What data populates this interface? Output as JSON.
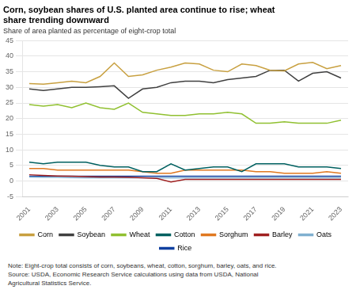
{
  "chart_data": {
    "type": "line",
    "title": [
      "Corn, soybean shares of U.S. planted area continue to rise; wheat",
      "share trending downward"
    ],
    "subtitle": "Share of area planted as percentage of eight-crop total",
    "notes": [
      "Note: Eight-crop total consists of corn, soybeans, wheat, cotton, sorghum, barley, oats, and rice.",
      "Source: USDA, Economic Research Service calculations using data from USDA, National",
      "Agricultural Statistics Service."
    ],
    "x": [
      2001,
      2002,
      2003,
      2004,
      2005,
      2006,
      2007,
      2008,
      2009,
      2010,
      2011,
      2012,
      2013,
      2014,
      2015,
      2016,
      2017,
      2018,
      2019,
      2020,
      2021,
      2022,
      2023
    ],
    "series": [
      {
        "name": "Corn",
        "color": "#C8A040",
        "values": [
          31.2,
          31.0,
          31.5,
          32.0,
          31.5,
          33.5,
          37.8,
          33.5,
          34.0,
          35.5,
          36.5,
          37.8,
          37.5,
          35.5,
          35.0,
          37.5,
          37.0,
          35.5,
          35.3,
          37.5,
          38.0,
          36.0,
          37.0
        ]
      },
      {
        "name": "Soybean",
        "color": "#404040",
        "values": [
          29.5,
          29.0,
          29.5,
          30.0,
          30.0,
          30.2,
          30.5,
          26.5,
          29.5,
          30.0,
          31.5,
          32.0,
          32.0,
          31.5,
          32.5,
          33.0,
          33.5,
          35.5,
          35.5,
          32.0,
          34.5,
          35.0,
          33.0
        ]
      },
      {
        "name": "Wheat",
        "color": "#90C030",
        "values": [
          24.5,
          24.0,
          24.5,
          23.5,
          25.0,
          23.5,
          23.0,
          25.0,
          22.0,
          21.5,
          21.0,
          21.0,
          21.5,
          21.5,
          22.0,
          21.5,
          18.5,
          18.5,
          19.0,
          18.5,
          18.5,
          18.5,
          19.5
        ]
      },
      {
        "name": "Cotton",
        "color": "#006060",
        "values": [
          6.0,
          5.5,
          6.0,
          6.0,
          6.0,
          5.0,
          4.5,
          4.5,
          3.0,
          3.0,
          5.5,
          3.5,
          4.0,
          4.5,
          4.5,
          3.0,
          5.5,
          5.5,
          5.5,
          4.5,
          4.5,
          4.5,
          4.0
        ]
      },
      {
        "name": "Sorghum",
        "color": "#E07820",
        "values": [
          4.0,
          4.0,
          3.5,
          3.5,
          3.5,
          3.5,
          3.5,
          3.5,
          3.0,
          2.5,
          2.5,
          3.5,
          3.5,
          3.5,
          3.5,
          3.5,
          3.0,
          3.0,
          2.5,
          2.5,
          2.5,
          3.0,
          2.5
        ]
      },
      {
        "name": "Barley",
        "color": "#A02020",
        "values": [
          2.0,
          1.8,
          1.6,
          1.5,
          1.4,
          1.3,
          1.3,
          1.2,
          1.0,
          0.8,
          -0.3,
          0.5,
          0.5,
          0.5,
          0.5,
          0.5,
          0.5,
          0.5,
          0.5,
          0.5,
          0.5,
          0.5,
          0.5
        ]
      },
      {
        "name": "Oats",
        "color": "#80B0D0",
        "values": [
          1.3,
          1.2,
          1.2,
          1.1,
          1.0,
          1.0,
          1.0,
          1.0,
          1.0,
          1.0,
          1.0,
          1.0,
          1.0,
          1.0,
          1.0,
          1.0,
          1.0,
          1.0,
          1.0,
          1.0,
          1.0,
          1.0,
          1.0
        ]
      },
      {
        "name": "Rice",
        "color": "#1040A0",
        "values": [
          1.5,
          1.5,
          1.5,
          1.5,
          1.5,
          1.5,
          1.5,
          1.5,
          1.5,
          1.5,
          1.5,
          1.5,
          1.5,
          1.5,
          1.5,
          1.5,
          1.5,
          1.5,
          1.5,
          1.5,
          1.5,
          1.5,
          1.5
        ]
      }
    ],
    "xlim": [
      2000.5,
      2023.5
    ],
    "xticks": [
      2001,
      2003,
      2005,
      2007,
      2009,
      2011,
      2013,
      2015,
      2017,
      2019,
      2021,
      2023
    ],
    "ylim": [
      -5,
      45
    ],
    "yticks": [
      -5,
      0,
      5,
      10,
      15,
      20,
      25,
      30,
      35,
      40,
      45
    ],
    "grid": "y",
    "legend": "bottom"
  }
}
